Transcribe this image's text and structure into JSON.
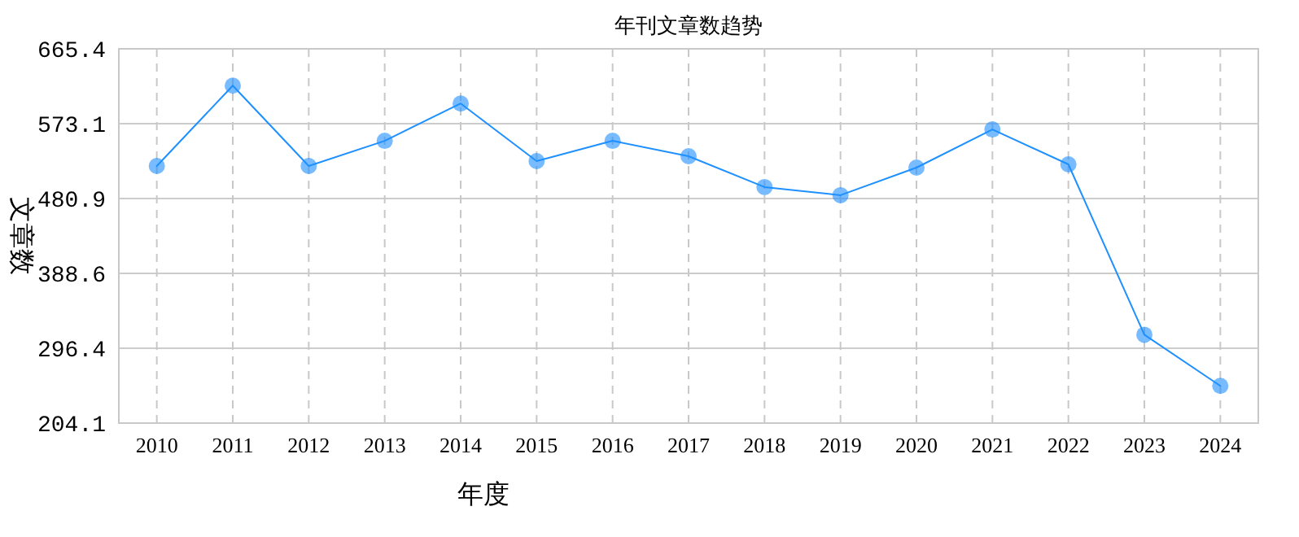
{
  "chart_data": {
    "type": "line",
    "title": "年刊文章数趋势",
    "xlabel": "年度",
    "ylabel": "文章数",
    "categories": [
      "2010",
      "2011",
      "2012",
      "2013",
      "2014",
      "2015",
      "2016",
      "2017",
      "2018",
      "2019",
      "2020",
      "2021",
      "2022",
      "2023",
      "2024"
    ],
    "series": [
      {
        "color": "#1e90ff",
        "values": [
          521,
          620,
          521,
          552,
          598,
          527,
          552,
          533,
          495,
          485,
          519,
          566,
          523,
          313,
          250
        ]
      }
    ],
    "ylim": [
      204.1,
      665.4
    ],
    "yticks": [
      204.1,
      296.4,
      388.6,
      480.9,
      573.1,
      665.4
    ],
    "grid": true,
    "marker": "circle",
    "line_style": "solid"
  }
}
